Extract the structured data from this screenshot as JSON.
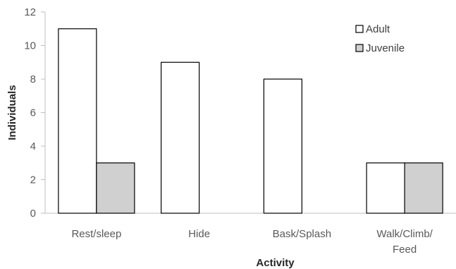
{
  "chart_data": {
    "type": "bar",
    "title": "",
    "xlabel": "Activity",
    "ylabel": "Individuals",
    "ylim": [
      0,
      12
    ],
    "yticks": [
      0,
      2,
      4,
      6,
      8,
      10,
      12
    ],
    "categories": [
      [
        "Rest/sleep"
      ],
      [
        "Hide"
      ],
      [
        "Bask/Splash"
      ],
      [
        "Walk/Climb/",
        "Feed"
      ]
    ],
    "series": [
      {
        "name": "Adult",
        "color": "#ffffff",
        "values": [
          11,
          9,
          8,
          3
        ]
      },
      {
        "name": "Juvenile",
        "color": "#d0d0d0",
        "values": [
          3,
          0,
          0,
          3
        ]
      }
    ],
    "legend": "top-right",
    "grid": false
  }
}
